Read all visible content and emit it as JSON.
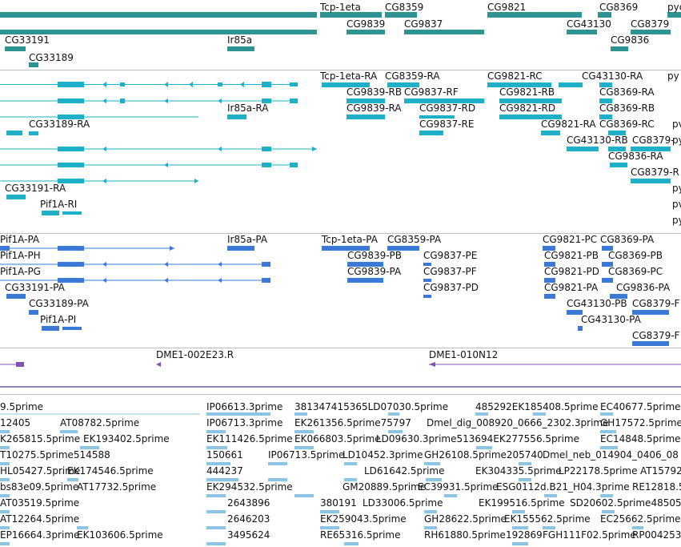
{
  "colors": {
    "gene": "#2e9393",
    "transcript": "#1eb0c8",
    "cds": "#3a79d6",
    "clone": "#7f52b4",
    "est": "#8cc4e6",
    "separator": "#bdbdbd"
  },
  "tracks": {
    "genes": {
      "labels": [
        "Tcp-1eta",
        "CG8359",
        "CG9821",
        "CG8369",
        "pyc",
        "CG9839",
        "CG9837",
        "CG43130",
        "CG8379",
        "CG33191",
        "Ir85a",
        "CG9836",
        "CG33189"
      ]
    },
    "transcripts": {
      "labels": [
        "Tcp-1eta-RA",
        "CG8359-RA",
        "CG9821-RC",
        "CG43130-RA",
        "py",
        "CG9839-RB",
        "CG9837-RF",
        "CG9821-RB",
        "CG8369-RA",
        "Ir85a-RA",
        "CG9839-RA",
        "CG9837-RD",
        "CG9821-RD",
        "CG8369-RB",
        "CG33189-RA",
        "CG9837-RE",
        "CG9821-RA",
        "CG8369-RC",
        "pv",
        "CG43130-RB",
        "CG8379-",
        "CG9836-RA",
        "py",
        "CG8379-R",
        "CG33191-RA",
        "py",
        "Pif1A-RI",
        "pv",
        "py"
      ]
    },
    "cds": {
      "labels": [
        "Pif1A-PA",
        "Ir85a-PA",
        "Tcp-1eta-PA",
        "CG8359-PA",
        "CG9821-PC",
        "CG8369-PA",
        "Pif1A-PH",
        "CG9839-PB",
        "CG9837-PE",
        "CG9821-PB",
        "CG8369-PB",
        "Pif1A-PG",
        "CG9839-PA",
        "CG9837-PF",
        "CG9821-PD",
        "CG8369-PC",
        "CG33191-PA",
        "CG9837-PD",
        "CG9821-PA",
        "CG9836-PA",
        "CG33189-PA",
        "CG43130-PB",
        "CG8379-F",
        "Pif1A-PI",
        "CG43130-PA",
        "CG8379-F"
      ]
    },
    "clones": {
      "labels": [
        "DME1-002E23.R",
        "DME1-010N12"
      ]
    },
    "ests": {
      "labels": [
        "9.5prime",
        "IP06613.3prime",
        "381347415365LD07030.5prime",
        "485292EK185408.5prime",
        "EC40677.5prime",
        "12405",
        "AT08782.5prime",
        "IP06713.3prime",
        "EK261356.5prime75797",
        "Dmel_dig_008920_0666_2302.3prime",
        "GH17572.5prime",
        "K265815.5prime",
        "EK193402.5prime",
        "EK111426.5prime",
        "EK066803.5prime",
        "LD09630.3prime513694EK277556.5prime",
        "EC14848.5prime2",
        "T10275.5prime514588",
        "150661",
        "IP06713.5prime",
        "LD10452.3prime",
        "GH26108.5prime205740",
        "Dmel_neb_014904_0406_08",
        "HL05427.5prime",
        "EK174546.5prime",
        "444237",
        "LD61642.5prime",
        "EK304335.5prime",
        "LP22178.5prime",
        "AT15792",
        "bs83e09.5prime",
        "AT17732.5prime",
        "EK294532.5prime",
        "GM20889.5prime",
        "EC39931.5prime",
        "ESG0112d.B21_H04.3prime",
        "RE12818.5",
        "AT03519.5prime",
        "2643896",
        "380191",
        "LD33006.5prime",
        "EK199516.5prime",
        "SD20602.5prime48505",
        "AT12264.5prime",
        "2646203",
        "EK259043.5prime",
        "GH28622.5prime",
        "EK155562.5prime",
        "EC25662.5prime",
        "EP16664.3prime",
        "EK103606.5prime",
        "3495624",
        "RE65316.5prime",
        "RH61880.5prime192869",
        "FGH111F02.5prime",
        "RP004253"
      ]
    }
  }
}
